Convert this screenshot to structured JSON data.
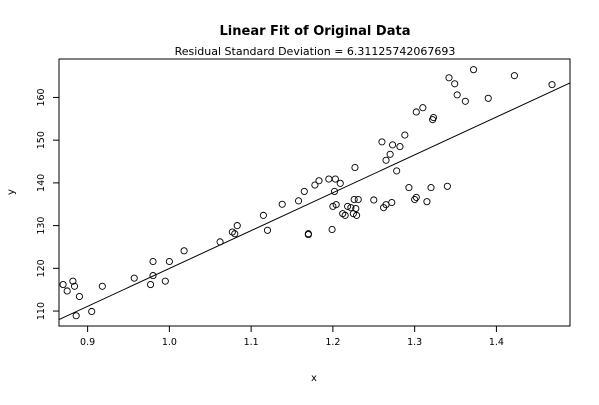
{
  "chart_data": {
    "type": "scatter",
    "title": "Linear Fit of Original Data",
    "subtitle": "Residual Standard Deviation =  6.31125742067693",
    "xlabel": "x",
    "ylabel": "y",
    "xlim": [
      0.865,
      1.49
    ],
    "ylim": [
      106.5,
      169
    ],
    "xticks": [
      "0.9",
      "1.0",
      "1.1",
      "1.2",
      "1.3",
      "1.4"
    ],
    "yticks": [
      "110",
      "120",
      "130",
      "140",
      "150",
      "160"
    ],
    "grid": false,
    "fit_line": {
      "x": [
        0.865,
        1.49
      ],
      "y": [
        108.0,
        163.4
      ]
    },
    "series": [
      {
        "points": [
          [
            0.87,
            116.2
          ],
          [
            0.875,
            114.7
          ],
          [
            0.882,
            117.0
          ],
          [
            0.884,
            115.8
          ],
          [
            0.886,
            108.9
          ],
          [
            0.89,
            113.4
          ],
          [
            0.905,
            109.9
          ],
          [
            0.918,
            115.8
          ],
          [
            0.957,
            117.7
          ],
          [
            0.977,
            116.2
          ],
          [
            0.98,
            121.6
          ],
          [
            0.98,
            118.3
          ],
          [
            0.995,
            117.0
          ],
          [
            1.0,
            121.6
          ],
          [
            1.018,
            124.1
          ],
          [
            1.062,
            126.2
          ],
          [
            1.077,
            128.5
          ],
          [
            1.08,
            128.1
          ],
          [
            1.083,
            130.0
          ],
          [
            1.115,
            132.4
          ],
          [
            1.12,
            128.9
          ],
          [
            1.138,
            135.0
          ],
          [
            1.158,
            135.8
          ],
          [
            1.165,
            138.0
          ],
          [
            1.17,
            127.9
          ],
          [
            1.17,
            128.1
          ],
          [
            1.178,
            139.5
          ],
          [
            1.183,
            140.5
          ],
          [
            1.195,
            140.9
          ],
          [
            1.199,
            129.1
          ],
          [
            1.2,
            134.5
          ],
          [
            1.202,
            138.0
          ],
          [
            1.203,
            140.9
          ],
          [
            1.204,
            134.9
          ],
          [
            1.209,
            139.9
          ],
          [
            1.212,
            132.8
          ],
          [
            1.215,
            132.4
          ],
          [
            1.218,
            134.5
          ],
          [
            1.222,
            134.2
          ],
          [
            1.225,
            132.8
          ],
          [
            1.226,
            136.1
          ],
          [
            1.227,
            143.6
          ],
          [
            1.228,
            134.0
          ],
          [
            1.229,
            132.4
          ],
          [
            1.231,
            136.1
          ],
          [
            1.25,
            136.0
          ],
          [
            1.26,
            149.6
          ],
          [
            1.262,
            134.2
          ],
          [
            1.265,
            134.9
          ],
          [
            1.265,
            145.3
          ],
          [
            1.27,
            146.7
          ],
          [
            1.272,
            135.4
          ],
          [
            1.273,
            148.9
          ],
          [
            1.278,
            142.8
          ],
          [
            1.282,
            148.5
          ],
          [
            1.288,
            151.2
          ],
          [
            1.293,
            138.9
          ],
          [
            1.3,
            136.1
          ],
          [
            1.302,
            136.6
          ],
          [
            1.302,
            156.6
          ],
          [
            1.31,
            157.6
          ],
          [
            1.315,
            135.6
          ],
          [
            1.32,
            138.9
          ],
          [
            1.322,
            154.8
          ],
          [
            1.323,
            155.3
          ],
          [
            1.34,
            139.2
          ],
          [
            1.342,
            164.6
          ],
          [
            1.349,
            163.2
          ],
          [
            1.352,
            160.6
          ],
          [
            1.362,
            159.1
          ],
          [
            1.372,
            166.5
          ],
          [
            1.39,
            159.8
          ],
          [
            1.422,
            165.1
          ],
          [
            1.468,
            163.0
          ]
        ]
      }
    ]
  }
}
